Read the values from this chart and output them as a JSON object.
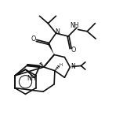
{
  "bg_color": "#ffffff",
  "line_color": "#111111",
  "lw": 1.2,
  "fs": 5.8,
  "figsize": [
    1.57,
    1.56
  ],
  "dpi": 100,
  "xlim": [
    0,
    10
  ],
  "ylim": [
    0,
    10
  ]
}
